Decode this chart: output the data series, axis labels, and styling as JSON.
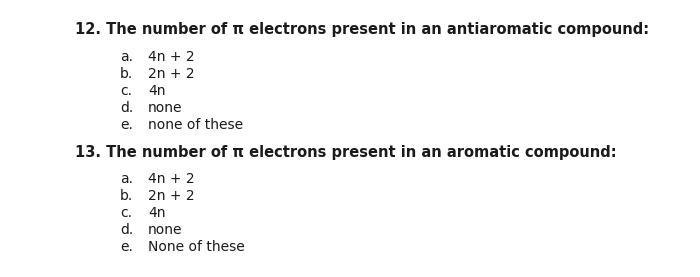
{
  "background_color": "#ffffff",
  "q12_header": "12. The number of π electrons present in an antiaromatic compound:",
  "q12_options": [
    [
      "a.",
      "4n + 2"
    ],
    [
      "b.",
      "2n + 2"
    ],
    [
      "c.",
      "4n"
    ],
    [
      "d.",
      "none"
    ],
    [
      "e.",
      "none of these"
    ]
  ],
  "q13_header": "13. The number of π electrons present in an aromatic compound:",
  "q13_options": [
    [
      "a.",
      "4n + 2"
    ],
    [
      "b.",
      "2n + 2"
    ],
    [
      "c.",
      "4n"
    ],
    [
      "d.",
      "none"
    ],
    [
      "e.",
      "None of these"
    ]
  ],
  "header_fontsize": 10.5,
  "option_fontsize": 10,
  "text_color": "#1a1a1a"
}
